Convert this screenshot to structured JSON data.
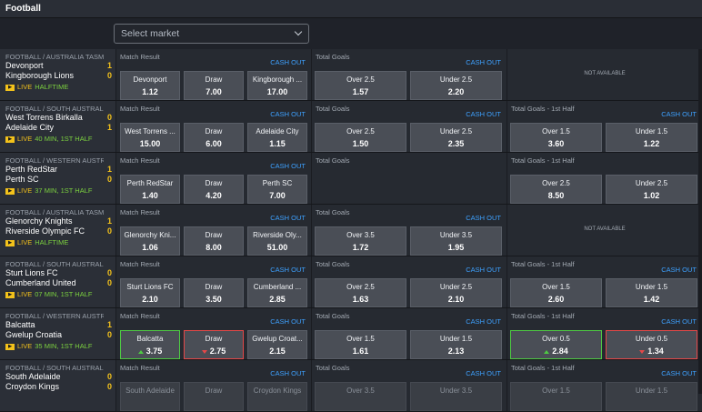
{
  "header": {
    "title": "Football"
  },
  "select": {
    "placeholder": "Select market"
  },
  "events": [
    {
      "league": "FOOTBALL / AUSTRALIA TASM...",
      "home": "Devonport",
      "home_score": "1",
      "away": "Kingborough Lions",
      "away_score": "0",
      "status": "HALFTIME",
      "m1": {
        "title": "Match Result",
        "cash": "CASH OUT",
        "odds": [
          {
            "label": "Devonport",
            "value": "1.12"
          },
          {
            "label": "Draw",
            "value": "7.00"
          },
          {
            "label": "Kingborough ...",
            "value": "17.00"
          }
        ]
      },
      "m2": {
        "title": "Total Goals",
        "cash": "CASH OUT",
        "odds": [
          {
            "label": "Over 2.5",
            "value": "1.57"
          },
          {
            "label": "Under 2.5",
            "value": "2.20"
          }
        ]
      },
      "m3": {
        "na": "NOT AVAILABLE"
      }
    },
    {
      "league": "FOOTBALL / SOUTH AUSTRALIA...",
      "home": "West Torrens Birkalla",
      "home_score": "0",
      "away": "Adelaide City",
      "away_score": "1",
      "status": "40 MIN, 1ST HALF",
      "m1": {
        "title": "Match Result",
        "cash": "CASH OUT",
        "odds": [
          {
            "label": "West Torrens ...",
            "value": "15.00"
          },
          {
            "label": "Draw",
            "value": "6.00"
          },
          {
            "label": "Adelaide City",
            "value": "1.15"
          }
        ]
      },
      "m2": {
        "title": "Total Goals",
        "cash": "CASH OUT",
        "odds": [
          {
            "label": "Over 2.5",
            "value": "1.50"
          },
          {
            "label": "Under 2.5",
            "value": "2.35"
          }
        ]
      },
      "m3": {
        "title": "Total Goals - 1st Half",
        "cash": "CASH OUT",
        "odds": [
          {
            "label": "Over 1.5",
            "value": "3.60"
          },
          {
            "label": "Under 1.5",
            "value": "1.22"
          }
        ]
      }
    },
    {
      "league": "FOOTBALL / WESTERN AUSTRA...",
      "home": "Perth RedStar",
      "home_score": "1",
      "away": "Perth SC",
      "away_score": "0",
      "status": "37 MIN, 1ST HALF",
      "m1": {
        "title": "Match Result",
        "cash": "CASH OUT",
        "odds": [
          {
            "label": "Perth RedStar",
            "value": "1.40"
          },
          {
            "label": "Draw",
            "value": "4.20"
          },
          {
            "label": "Perth SC",
            "value": "7.00"
          }
        ]
      },
      "m2": {
        "title": "Total Goals"
      },
      "m3": {
        "title": "Total Goals - 1st Half",
        "cash": "",
        "odds": [
          {
            "label": "Over 2.5",
            "value": "8.50"
          },
          {
            "label": "Under 2.5",
            "value": "1.02"
          }
        ]
      }
    },
    {
      "league": "FOOTBALL / AUSTRALIA TASM...",
      "home": "Glenorchy Knights",
      "home_score": "1",
      "away": "Riverside Olympic FC",
      "away_score": "0",
      "status": "HALFTIME",
      "m1": {
        "title": "Match Result",
        "cash": "CASH OUT",
        "odds": [
          {
            "label": "Glenorchy Kni...",
            "value": "1.06"
          },
          {
            "label": "Draw",
            "value": "8.00"
          },
          {
            "label": "Riverside Oly...",
            "value": "51.00"
          }
        ]
      },
      "m2": {
        "title": "Total Goals",
        "cash": "CASH OUT",
        "odds": [
          {
            "label": "Over 3.5",
            "value": "1.72"
          },
          {
            "label": "Under 3.5",
            "value": "1.95"
          }
        ]
      },
      "m3": {
        "na": "NOT AVAILABLE"
      }
    },
    {
      "league": "FOOTBALL / SOUTH AUSTRALI...",
      "home": "Sturt Lions FC",
      "home_score": "0",
      "away": "Cumberland United",
      "away_score": "0",
      "status": "07 MIN, 1ST HALF",
      "m1": {
        "title": "Match Result",
        "cash": "CASH OUT",
        "odds": [
          {
            "label": "Sturt Lions FC",
            "value": "2.10"
          },
          {
            "label": "Draw",
            "value": "3.50"
          },
          {
            "label": "Cumberland ...",
            "value": "2.85"
          }
        ]
      },
      "m2": {
        "title": "Total Goals",
        "cash": "CASH OUT",
        "odds": [
          {
            "label": "Over 2.5",
            "value": "1.63"
          },
          {
            "label": "Under 2.5",
            "value": "2.10"
          }
        ]
      },
      "m3": {
        "title": "Total Goals - 1st Half",
        "cash": "CASH OUT",
        "odds": [
          {
            "label": "Over 1.5",
            "value": "2.60"
          },
          {
            "label": "Under 1.5",
            "value": "1.42"
          }
        ]
      }
    },
    {
      "league": "FOOTBALL / WESTERN AUSTR...",
      "home": "Balcatta",
      "home_score": "1",
      "away": "Gwelup Croatia",
      "away_score": "0",
      "status": "35 MIN, 1ST HALF",
      "m1": {
        "title": "Match Result",
        "cash": "CASH OUT",
        "odds": [
          {
            "label": "Balcatta",
            "value": "3.75",
            "trend": "up"
          },
          {
            "label": "Draw",
            "value": "2.75",
            "trend": "down"
          },
          {
            "label": "Gwelup Croat...",
            "value": "2.15"
          }
        ]
      },
      "m2": {
        "title": "Total Goals",
        "cash": "CASH OUT",
        "odds": [
          {
            "label": "Over 1.5",
            "value": "1.61"
          },
          {
            "label": "Under 1.5",
            "value": "2.13"
          }
        ]
      },
      "m3": {
        "title": "Total Goals - 1st Half",
        "cash": "CASH OUT",
        "odds": [
          {
            "label": "Over 0.5",
            "value": "2.84",
            "trend": "up"
          },
          {
            "label": "Under 0.5",
            "value": "1.34",
            "trend": "down"
          }
        ]
      }
    },
    {
      "league": "FOOTBALL / SOUTH AUSTRALI...",
      "home": "South Adelaide",
      "home_score": "0",
      "away": "Croydon Kings",
      "away_score": "0",
      "status": "",
      "m1": {
        "title": "Match Result",
        "cash": "CASH OUT",
        "odds": [
          {
            "label": "South Adelaide",
            "value": ""
          },
          {
            "label": "Draw",
            "value": ""
          },
          {
            "label": "Croydon Kings",
            "value": ""
          }
        ]
      },
      "m2": {
        "title": "Total Goals",
        "cash": "CASH OUT",
        "odds": [
          {
            "label": "Over 3.5",
            "value": ""
          },
          {
            "label": "Under 3.5",
            "value": ""
          }
        ]
      },
      "m3": {
        "title": "Total Goals - 1st Half",
        "cash": "CASH OUT",
        "odds": [
          {
            "label": "Over 1.5",
            "value": ""
          },
          {
            "label": "Under 1.5",
            "value": ""
          }
        ]
      }
    }
  ],
  "live_label": "LIVE",
  "colors": {
    "accent_cash": "#3ea1ff",
    "score": "#f3c21b",
    "live_status": "#7cd13f",
    "up": "#4ecb43",
    "down": "#e54848"
  }
}
